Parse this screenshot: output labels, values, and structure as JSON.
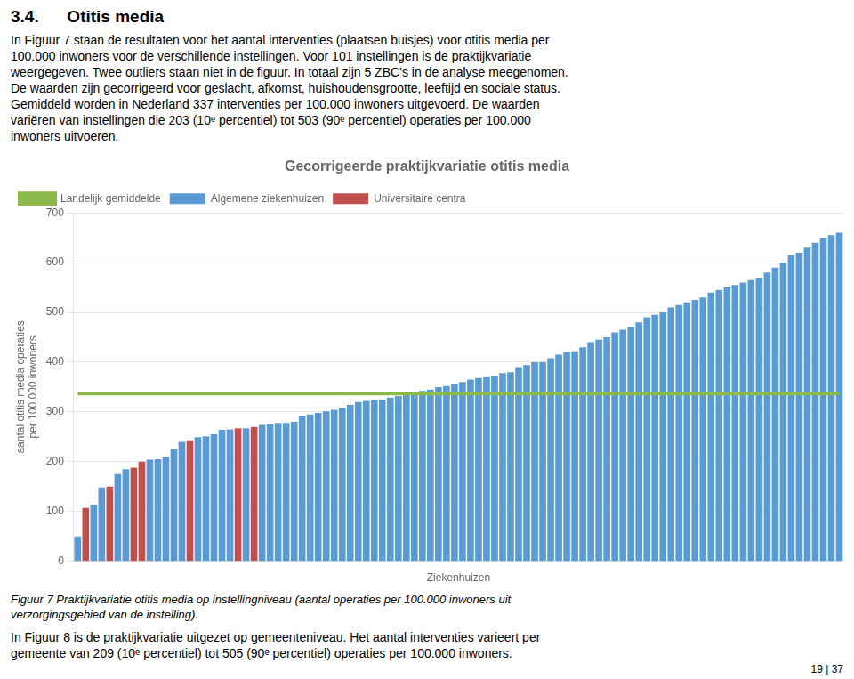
{
  "heading": "3.4.      Otitis media",
  "paragraph_lines": [
    "In Figuur 7 staan de resultaten voor het aantal interventies (plaatsen buisjes) voor otitis media per",
    "100.000 inwoners voor de verschillende instellingen. Voor 101 instellingen is de praktijkvariatie",
    "weergegeven. Twee outliers staan niet in de figuur. In totaal zijn 5 ZBC’s in de analyse meegenomen.",
    "De waarden zijn gecorrigeerd voor geslacht, afkomst, huishoudensgrootte, leeftijd en sociale status.",
    "Gemiddeld worden in Nederland 337 interventies per 100.000 inwoners uitgevoerd. De waarden",
    "variëren van instellingen die 203 (10ᵉ percentiel) tot 503 (90ᵉ percentiel) operaties per 100.000",
    "inwoners uitvoeren."
  ],
  "caption_lines": [
    "Figuur 7 Praktijkvariatie otitis media op instellingniveau (aantal operaties per 100.000 inwoners uit",
    "verzorgingsgebied van de instelling)."
  ],
  "bottom_lines": [
    "In Figuur 8 is de praktijkvariatie uitgezet op gemeenteniveau. Het aantal interventies varieert per",
    "gemeente van 209 (10ᵉ percentiel) tot 505 (90ᵉ percentiel) operaties per 100.000 inwoners."
  ],
  "page_number": "19 | 37",
  "chart_data": {
    "type": "bar",
    "title": "Gecorrigeerde praktijkvariatie otitis media",
    "xlabel": "Ziekenhuizen",
    "ylabel": "aantal otitis media operaties\nper 100.000 inwoners",
    "categories": [
      null,
      null,
      null,
      null,
      null,
      null,
      null,
      null,
      null,
      null,
      null,
      null,
      null,
      null,
      null,
      null,
      null,
      null,
      null,
      null,
      null,
      null,
      null,
      null,
      null,
      null,
      null,
      null,
      null,
      null,
      null,
      null,
      null,
      null,
      null,
      null,
      null,
      null,
      null,
      null,
      null,
      null,
      null,
      null,
      null,
      null,
      null,
      null,
      null,
      null,
      null,
      null,
      null,
      null,
      null,
      null,
      null,
      null,
      null,
      null,
      null,
      null,
      null,
      null,
      null,
      null,
      null,
      null,
      null,
      null,
      null,
      null,
      null,
      null,
      null,
      null,
      null,
      null,
      null,
      null,
      null,
      null,
      null,
      null,
      null,
      null,
      null,
      null,
      null,
      null,
      null,
      null,
      null,
      null,
      null,
      null
    ],
    "series": [
      {
        "name": "Algemene ziekenhuizen",
        "color": "#5b9bd5",
        "values": [
          50,
          null,
          113,
          148,
          null,
          175,
          185,
          null,
          null,
          204,
          205,
          210,
          225,
          240,
          null,
          249,
          251,
          255,
          264,
          265,
          null,
          267,
          null,
          274,
          275,
          278,
          278,
          280,
          292,
          295,
          298,
          301,
          304,
          308,
          314,
          320,
          322,
          325,
          325,
          329,
          332,
          337,
          340,
          342,
          345,
          350,
          352,
          355,
          360,
          365,
          368,
          370,
          372,
          378,
          380,
          390,
          394,
          400,
          400,
          408,
          415,
          420,
          422,
          430,
          440,
          445,
          450,
          460,
          465,
          470,
          480,
          490,
          495,
          500,
          510,
          515,
          520,
          525,
          530,
          540,
          545,
          550,
          555,
          560,
          565,
          570,
          580,
          590,
          600,
          615,
          620,
          630,
          640,
          650,
          655,
          660
        ]
      },
      {
        "name": "Universitaire centra",
        "color": "#c0504d",
        "values": [
          null,
          107,
          null,
          null,
          150,
          null,
          null,
          188,
          200,
          null,
          null,
          null,
          null,
          null,
          243,
          null,
          null,
          null,
          null,
          null,
          267,
          null,
          270,
          null,
          null,
          null,
          null,
          null,
          null,
          null,
          null,
          null,
          null,
          null,
          null,
          null,
          null,
          null,
          null,
          null,
          null,
          null,
          null,
          null,
          null,
          null,
          null,
          null,
          null,
          null,
          null,
          null,
          null,
          null,
          null,
          null,
          null,
          null,
          null,
          null,
          null,
          null,
          null,
          null,
          null,
          null,
          null,
          null,
          null,
          null,
          null,
          null,
          null,
          null,
          null,
          null,
          null,
          null,
          null,
          null,
          null,
          null,
          null,
          null,
          null,
          null,
          null,
          null,
          null,
          null,
          null,
          null,
          null,
          null,
          null,
          null
        ]
      },
      {
        "name": "Landelijk gemiddelde",
        "color": "#8db84a",
        "type": "line",
        "values": [
          337,
          337,
          337,
          337,
          337,
          337,
          337,
          337,
          337,
          337,
          337,
          337,
          337,
          337,
          337,
          337,
          337,
          337,
          337,
          337,
          337,
          337,
          337,
          337,
          337,
          337,
          337,
          337,
          337,
          337,
          337,
          337,
          337,
          337,
          337,
          337,
          337,
          337,
          337,
          337,
          337,
          337,
          337,
          337,
          337,
          337,
          337,
          337,
          337,
          337,
          337,
          337,
          337,
          337,
          337,
          337,
          337,
          337,
          337,
          337,
          337,
          337,
          337,
          337,
          337,
          337,
          337,
          337,
          337,
          337,
          337,
          337,
          337,
          337,
          337,
          337,
          337,
          337,
          337,
          337,
          337,
          337,
          337,
          337,
          337,
          337,
          337,
          337,
          337,
          337,
          337,
          337,
          337,
          337,
          337,
          337
        ]
      }
    ],
    "ylim": [
      0,
      700
    ],
    "yticks": [
      0,
      100,
      200,
      300,
      400,
      500,
      600,
      700
    ],
    "grid": true,
    "legend": "upper left",
    "tick_labels": "y"
  }
}
